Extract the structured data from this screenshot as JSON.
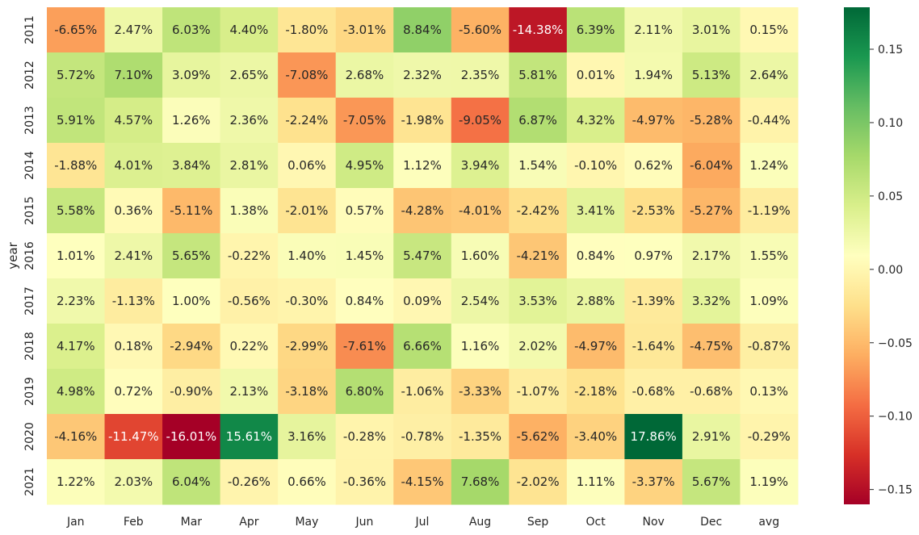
{
  "chart_data": {
    "type": "heatmap",
    "title": "",
    "xlabel": "",
    "ylabel": "year",
    "columns": [
      "Jan",
      "Feb",
      "Mar",
      "Apr",
      "May",
      "Jun",
      "Jul",
      "Aug",
      "Sep",
      "Oct",
      "Nov",
      "Dec",
      "avg"
    ],
    "rows": [
      "2011",
      "2012",
      "2013",
      "2014",
      "2015",
      "2016",
      "2017",
      "2018",
      "2019",
      "2020",
      "2021"
    ],
    "values": [
      [
        -6.65,
        2.47,
        6.03,
        4.4,
        -1.8,
        -3.01,
        8.84,
        -5.6,
        -14.38,
        6.39,
        2.11,
        3.01,
        0.15
      ],
      [
        5.72,
        7.1,
        3.09,
        2.65,
        -7.08,
        2.68,
        2.32,
        2.35,
        5.81,
        0.01,
        1.94,
        5.13,
        2.64
      ],
      [
        5.91,
        4.57,
        1.26,
        2.36,
        -2.24,
        -7.05,
        -1.98,
        -9.05,
        6.87,
        4.32,
        -4.97,
        -5.28,
        -0.44
      ],
      [
        -1.88,
        4.01,
        3.84,
        2.81,
        0.06,
        4.95,
        1.12,
        3.94,
        1.54,
        -0.1,
        0.62,
        -6.04,
        1.24
      ],
      [
        5.58,
        0.36,
        -5.11,
        1.38,
        -2.01,
        0.57,
        -4.28,
        -4.01,
        -2.42,
        3.41,
        -2.53,
        -5.27,
        -1.19
      ],
      [
        1.01,
        2.41,
        5.65,
        -0.22,
        1.4,
        1.45,
        5.47,
        1.6,
        -4.21,
        0.84,
        0.97,
        2.17,
        1.55
      ],
      [
        2.23,
        -1.13,
        1.0,
        -0.56,
        -0.3,
        0.84,
        0.09,
        2.54,
        3.53,
        2.88,
        -1.39,
        3.32,
        1.09
      ],
      [
        4.17,
        0.18,
        -2.94,
        0.22,
        -2.99,
        -7.61,
        6.66,
        1.16,
        2.02,
        -4.97,
        -1.64,
        -4.75,
        -0.87
      ],
      [
        4.98,
        0.72,
        -0.9,
        2.13,
        -3.18,
        6.8,
        -1.06,
        -3.33,
        -1.07,
        -2.18,
        -0.68,
        -0.68,
        0.13
      ],
      [
        -4.16,
        -11.47,
        -16.01,
        15.61,
        3.16,
        -0.28,
        -0.78,
        -1.35,
        -5.62,
        -3.4,
        17.86,
        2.91,
        -0.29
      ],
      [
        1.22,
        2.03,
        6.04,
        -0.26,
        0.66,
        -0.36,
        -4.15,
        7.68,
        -2.02,
        1.11,
        -3.37,
        5.67,
        1.19
      ]
    ],
    "value_format": "percent",
    "colormap": "RdYlGn",
    "color_range": [
      -0.1601,
      0.1786
    ],
    "colorbar_ticks": [
      "0.15",
      "0.10",
      "0.05",
      "0.00",
      "−0.05",
      "−0.10",
      "−0.15"
    ],
    "colorbar_tick_values": [
      0.15,
      0.1,
      0.05,
      0.0,
      -0.05,
      -0.1,
      -0.15
    ],
    "colorbar_position": "right",
    "grid": false
  }
}
